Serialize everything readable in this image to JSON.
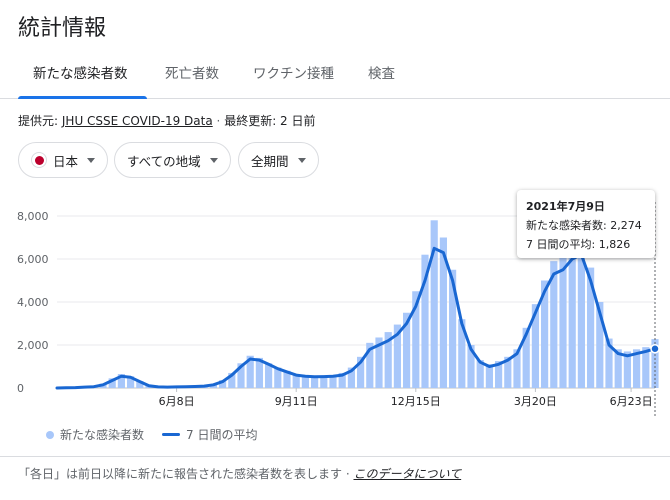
{
  "page": {
    "title": "統計情報"
  },
  "tabs": [
    {
      "label": "新たな感染者数"
    },
    {
      "label": "死亡者数"
    },
    {
      "label": "ワクチン接種"
    },
    {
      "label": "検査"
    }
  ],
  "source": {
    "prefix": "提供元:",
    "link": "JHU CSSE COVID-19 Data",
    "separator": "·",
    "updated": "最終更新: 2 日前"
  },
  "filters": {
    "country": "日本",
    "region": "すべての地域",
    "period": "全期間",
    "icons": {
      "flag": "japan-flag-icon",
      "dropdown": "chevron-down-icon"
    }
  },
  "tooltip": {
    "date": "2021年7月9日",
    "cases": "新たな感染者数: 2,274",
    "average": "7 日間の平均: 1,826"
  },
  "legend": {
    "cases": "新たな感染者数",
    "average": "7 日間の平均"
  },
  "footer": {
    "note": "「各日」は前日以降に新たに報告された感染者数を表します",
    "separator": "·",
    "about_link": "このデータについて"
  },
  "chart_data": {
    "type": "bar",
    "title": "",
    "ylim": [
      0,
      8000
    ],
    "yticks": [
      "0",
      "2,000",
      "4,000",
      "6,000",
      "8,000"
    ],
    "xtick_labels": [
      "6月8日",
      "9月11日",
      "12月15日",
      "3月20日",
      "6月23日"
    ],
    "grid": true,
    "legend_position": "bottom",
    "colors": {
      "bars": "#a8c7fa",
      "average": "#1967d2",
      "grid": "#e8eaed"
    },
    "series": [
      {
        "name": "7 日間の平均",
        "type": "line",
        "values": [
          0,
          10,
          20,
          40,
          60,
          150,
          350,
          550,
          500,
          300,
          100,
          50,
          40,
          50,
          60,
          70,
          90,
          150,
          300,
          600,
          1000,
          1350,
          1300,
          1100,
          900,
          750,
          600,
          550,
          520,
          530,
          550,
          600,
          800,
          1200,
          1800,
          2000,
          2200,
          2500,
          3000,
          3800,
          5000,
          6500,
          6300,
          5000,
          3000,
          1800,
          1200,
          1000,
          1100,
          1300,
          1600,
          2500,
          3500,
          4500,
          5300,
          5500,
          6000,
          6200,
          5000,
          3500,
          2000,
          1600,
          1500,
          1600,
          1700,
          1826
        ]
      },
      {
        "name": "新たな感染者数",
        "type": "bar",
        "values": [
          0,
          15,
          30,
          45,
          80,
          200,
          450,
          650,
          550,
          320,
          120,
          60,
          45,
          55,
          70,
          80,
          110,
          180,
          360,
          700,
          1150,
          1500,
          1400,
          1150,
          950,
          800,
          650,
          580,
          560,
          580,
          600,
          700,
          950,
          1450,
          2100,
          2350,
          2600,
          2950,
          3500,
          4500,
          6200,
          7800,
          7000,
          5500,
          3200,
          2000,
          1300,
          1100,
          1250,
          1450,
          1800,
          2800,
          3900,
          5000,
          5900,
          6300,
          6900,
          7000,
          5600,
          4000,
          2300,
          1800,
          1700,
          1800,
          1900,
          2274
        ]
      }
    ]
  }
}
